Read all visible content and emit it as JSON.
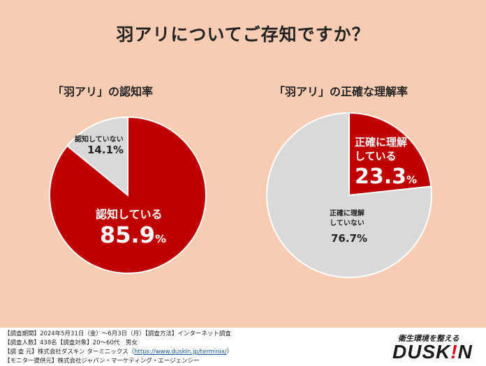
{
  "title": "羽アリについてご存知ですか？",
  "chart_data": [
    {
      "type": "pie",
      "title": "「羽アリ」の認知率",
      "slices": [
        {
          "label": "認知している",
          "value": 85.9,
          "color": "#c00000"
        },
        {
          "label": "認知していない",
          "value": 14.1,
          "color": "#d9d9d9"
        }
      ],
      "value_texts": [
        "85.9",
        "14.1%"
      ],
      "unit": "%"
    },
    {
      "type": "pie",
      "title": "「羽アリ」の正確な理解率",
      "slices": [
        {
          "label": "正確に理解している",
          "value": 23.3,
          "color": "#c00000"
        },
        {
          "label": "正確に理解していない",
          "value": 76.7,
          "color": "#d9d9d9"
        }
      ],
      "value_texts": [
        "23.3",
        "76.7%"
      ],
      "unit": "%"
    }
  ],
  "labels": {
    "l_red_line": "認知している",
    "l_grey_line": "認知していない",
    "r_red_1": "正確に理解",
    "r_red_2": "している",
    "r_grey_1": "正確に理解",
    "r_grey_2": "していない"
  },
  "footer": {
    "line1": "【調査期間】2024年5月31日（金）～6月3日（月）【調査方法】インターネット調査",
    "line2": "【調査人数】438名【調査対象】20～60代　男女",
    "line3_pre": "【調 査 元】株式会社ダスキン ターミニックス（",
    "line3_link": "https://www.duskin.jp/terminix/",
    "line3_post": "）",
    "line4": "【モニター提供元】株式会社ジャパン・マーケティング・エージェンシー"
  },
  "logo": {
    "tagline": "衛生環境を整える",
    "brand_a": "DUSK",
    "brand_ex": "!",
    "brand_b": "N"
  }
}
